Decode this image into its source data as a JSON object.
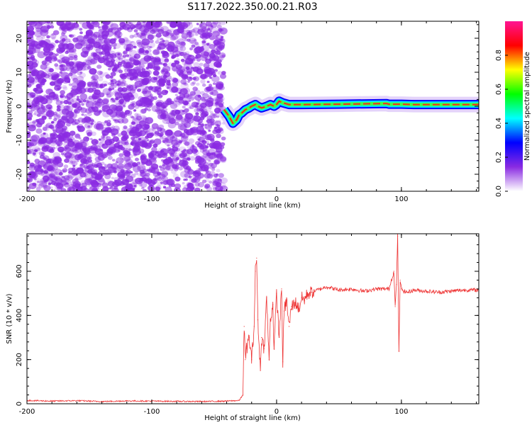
{
  "figure": {
    "title": "S117.2022.350.00.21.R03"
  },
  "chart_data": [
    {
      "type": "heatmap",
      "xlabel": "Height of straight line (km)",
      "ylabel": "Frequency (Hz)",
      "xlim": [
        -200,
        162
      ],
      "ylim": [
        -25,
        25
      ],
      "xticks": [
        -200,
        -100,
        0,
        100
      ],
      "yticks": [
        -20,
        -10,
        0,
        10,
        20
      ],
      "noise_region_x": [
        -200,
        -42
      ],
      "signal_track": {
        "x": [
          -42,
          -38,
          -35,
          -32,
          -30,
          -28,
          -25,
          -22,
          -20,
          -17,
          -15,
          -12,
          -8,
          -5,
          -2,
          0,
          2,
          5,
          10,
          20,
          50,
          88,
          90,
          100,
          110,
          162
        ],
        "y": [
          -1,
          -3,
          -5,
          -4,
          -2.5,
          -2,
          -1,
          -0.5,
          0,
          0.5,
          0,
          -0.5,
          0,
          0.5,
          0,
          0.5,
          1.5,
          1,
          0.5,
          0.5,
          0.6,
          0.8,
          0.6,
          0.6,
          0.5,
          0.5
        ]
      },
      "colorbar": {
        "label": "Normalized spectral amplitude",
        "range": [
          0,
          1
        ],
        "ticks": [
          "0.0",
          "0.2",
          "0.4",
          "0.6",
          "0.8"
        ],
        "tick_values": [
          0,
          0.2,
          0.4,
          0.6,
          0.8
        ],
        "colors": [
          "#ffffff",
          "#8a2be2",
          "#0000ff",
          "#00ffff",
          "#00ff00",
          "#ffff00",
          "#ff0000",
          "#ff1493"
        ]
      },
      "colors": {
        "noise": "#8a2be2",
        "track_outer": "#0000ff",
        "track_mid": "#00e0ff",
        "track_inner": "#44ff44",
        "track_core": "#ff2020"
      }
    },
    {
      "type": "line",
      "xlabel": "Height of straight line (km)",
      "ylabel": "SNR (10 * v/v)",
      "xlim": [
        -200,
        162
      ],
      "ylim": [
        0,
        770
      ],
      "xticks": [
        -200,
        -100,
        0,
        100
      ],
      "yticks": [
        0,
        200,
        400,
        600
      ],
      "series": [
        {
          "color": "#ee3333",
          "x": [
            -200,
            -180,
            -160,
            -140,
            -120,
            -100,
            -80,
            -60,
            -40,
            -30,
            -27,
            -26,
            -25,
            -24,
            -22,
            -20,
            -18,
            -17,
            -16,
            -15,
            -13,
            -12,
            -10,
            -8,
            -6,
            -5,
            -3,
            -2,
            0,
            2,
            4,
            5,
            6,
            8,
            10,
            12,
            15,
            18,
            20,
            22,
            25,
            28,
            30,
            35,
            40,
            50,
            60,
            70,
            80,
            90,
            92,
            94,
            95,
            96,
            97,
            98,
            99,
            100,
            102,
            105,
            110,
            120,
            130,
            140,
            150,
            162
          ],
          "y": [
            15,
            12,
            14,
            10,
            13,
            12,
            11,
            10,
            12,
            15,
            40,
            350,
            200,
            250,
            300,
            200,
            350,
            600,
            660,
            380,
            150,
            300,
            250,
            480,
            200,
            380,
            450,
            250,
            500,
            300,
            520,
            190,
            420,
            470,
            350,
            440,
            460,
            430,
            480,
            470,
            500,
            505,
            510,
            520,
            530,
            515,
            520,
            510,
            520,
            520,
            560,
            600,
            440,
            540,
            760,
            240,
            560,
            520,
            510,
            505,
            515,
            510,
            505,
            510,
            515,
            515
          ]
        }
      ]
    }
  ]
}
